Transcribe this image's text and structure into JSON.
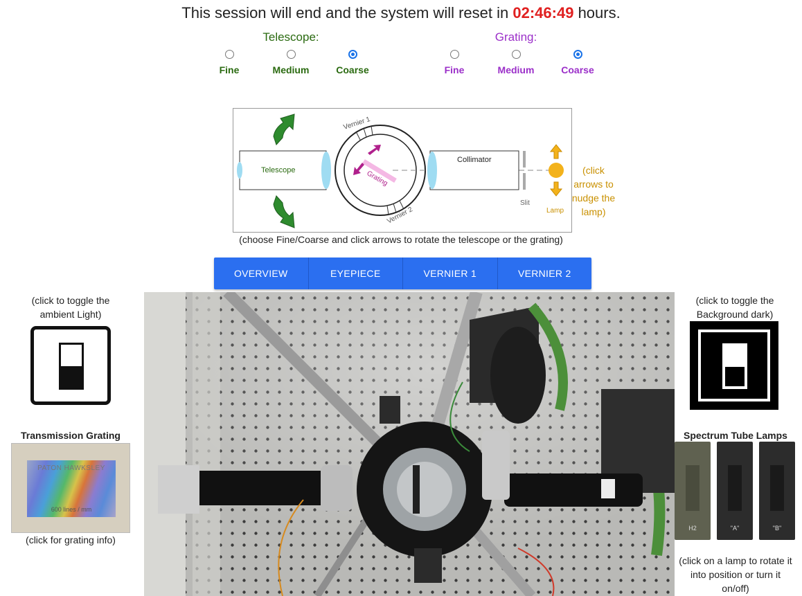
{
  "session": {
    "prefix": "This session will end and the system will reset in",
    "timer": "02:46:49",
    "suffix": "hours."
  },
  "telescope": {
    "title": "Telescope:",
    "options": [
      {
        "label": "Fine",
        "checked": false
      },
      {
        "label": "Medium",
        "checked": false
      },
      {
        "label": "Coarse",
        "checked": true
      }
    ]
  },
  "grating": {
    "title": "Grating:",
    "options": [
      {
        "label": "Fine",
        "checked": false
      },
      {
        "label": "Medium",
        "checked": false
      },
      {
        "label": "Coarse",
        "checked": true
      }
    ]
  },
  "diagram": {
    "telescope_label": "Telescope",
    "collimator_label": "Collimator",
    "vernier1_label": "Vernier 1",
    "vernier2_label": "Vernier 2",
    "grating_label": "Grating",
    "slit_label": "Slit",
    "lamp_label": "Lamp",
    "caption": "(choose Fine/Coarse and click arrows to rotate the telescope or the grating)",
    "lamp_hint": "(click arrows to nudge the lamp)"
  },
  "tabs": [
    "OVERVIEW",
    "EYEPIECE",
    "VERNIER 1",
    "VERNIER 2"
  ],
  "ambient": {
    "text": "(click to toggle the ambient Light)"
  },
  "background": {
    "text": "(click to toggle the Background dark)"
  },
  "transmission": {
    "title": "Transmission Grating",
    "brand": "PATON HAWKSLEY",
    "lines": "600 lines / mm",
    "caption": "(click for grating info)"
  },
  "lamps": {
    "title": "Spectrum Tube Lamps",
    "items": [
      "H2",
      "\"A\"",
      "\"B\""
    ],
    "caption": "(click on a lamp to rotate it into position or turn it on/off)"
  },
  "colors": {
    "timer": "#e02020",
    "telescope": "#2a6a10",
    "grating": "#9b2fc9",
    "tab_bar": "#2b6ff0",
    "lamp": "#f3b21b"
  }
}
